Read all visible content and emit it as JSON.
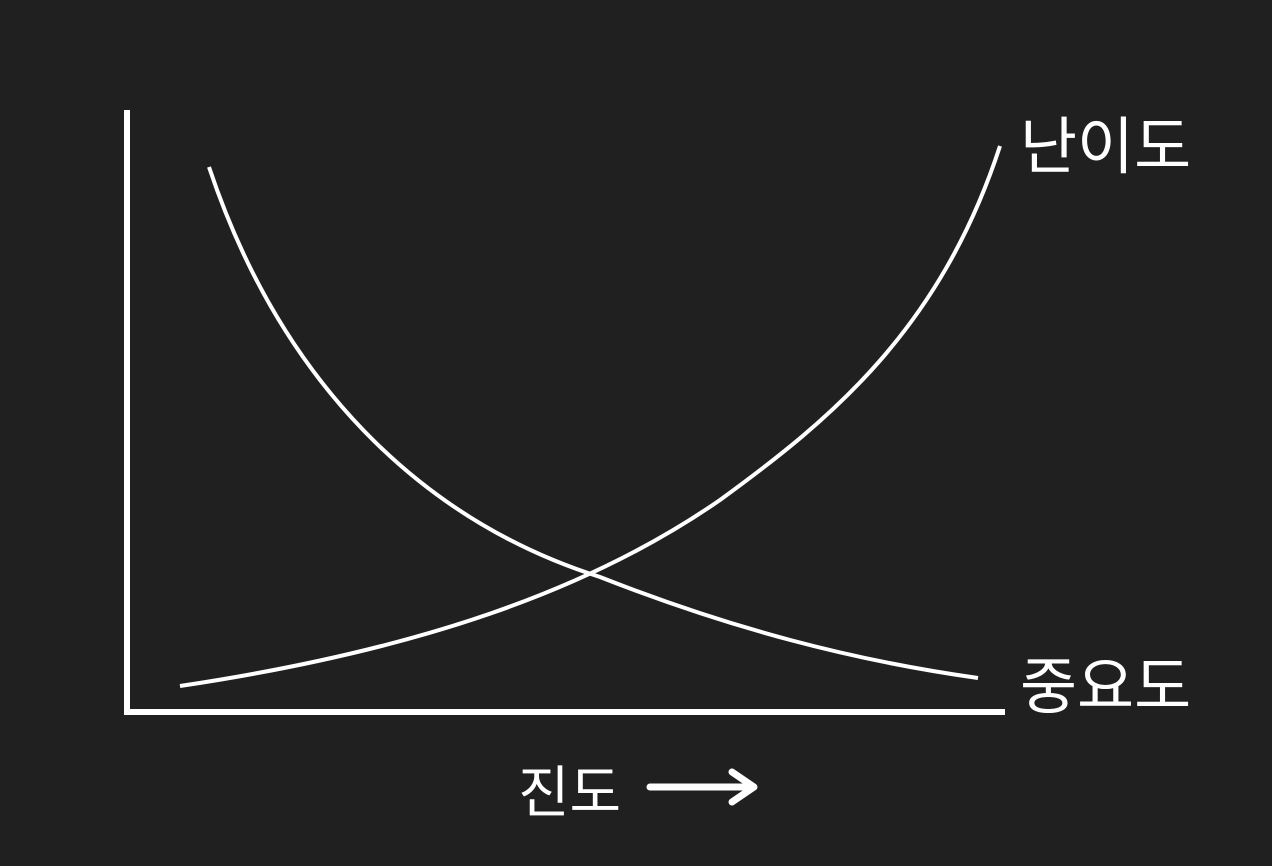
{
  "diagram": {
    "curves": [
      {
        "name": "난이도",
        "trend": "increasing"
      },
      {
        "name": "중요도",
        "trend": "decreasing"
      }
    ],
    "x_axis_label": "진도",
    "x_axis_arrow": "right-arrow-icon",
    "colors": {
      "background": "#202020",
      "lines": "#ffffff"
    }
  }
}
